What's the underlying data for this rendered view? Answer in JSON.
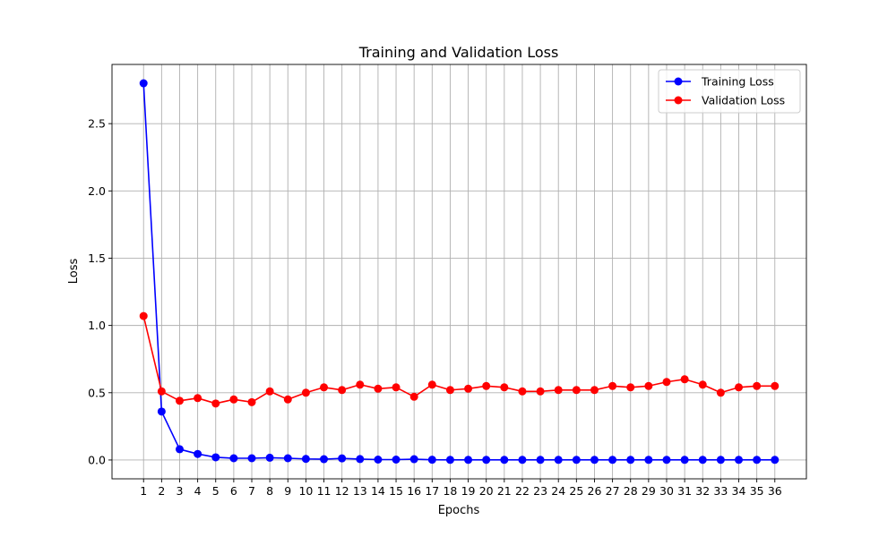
{
  "chart_data": {
    "type": "line",
    "title": "Training and Validation Loss",
    "xlabel": "Epochs",
    "ylabel": "Loss",
    "x": [
      1,
      2,
      3,
      4,
      5,
      6,
      7,
      8,
      9,
      10,
      11,
      12,
      13,
      14,
      15,
      16,
      17,
      18,
      19,
      20,
      21,
      22,
      23,
      24,
      25,
      26,
      27,
      28,
      29,
      30,
      31,
      32,
      33,
      34,
      35,
      36
    ],
    "xlim": [
      -0.75,
      37.75
    ],
    "ylim": [
      -0.14,
      2.94
    ],
    "yticks": [
      0.0,
      0.5,
      1.0,
      1.5,
      2.0,
      2.5
    ],
    "ytick_labels": [
      "0.0",
      "0.5",
      "1.0",
      "1.5",
      "2.0",
      "2.5"
    ],
    "grid": true,
    "legend_position": "top-right",
    "series": [
      {
        "name": "Training Loss",
        "color": "#0000ff",
        "marker": "circle",
        "values": [
          2.8,
          0.36,
          0.08,
          0.045,
          0.02,
          0.013,
          0.013,
          0.017,
          0.013,
          0.008,
          0.006,
          0.012,
          0.007,
          0.003,
          0.003,
          0.006,
          0.002,
          0.001,
          0.001,
          0.001,
          0.001,
          0.001,
          0.001,
          0.001,
          0.001,
          0.001,
          0.001,
          0.001,
          0.001,
          0.001,
          0.001,
          0.001,
          0.001,
          0.001,
          0.001,
          0.001
        ]
      },
      {
        "name": "Validation Loss",
        "color": "#ff0000",
        "marker": "circle",
        "values": [
          1.07,
          0.51,
          0.44,
          0.46,
          0.42,
          0.45,
          0.43,
          0.51,
          0.45,
          0.5,
          0.54,
          0.52,
          0.56,
          0.53,
          0.54,
          0.47,
          0.56,
          0.52,
          0.53,
          0.55,
          0.54,
          0.51,
          0.51,
          0.52,
          0.52,
          0.52,
          0.55,
          0.54,
          0.55,
          0.58,
          0.6,
          0.56,
          0.5,
          0.54,
          0.55,
          0.55
        ]
      }
    ]
  }
}
